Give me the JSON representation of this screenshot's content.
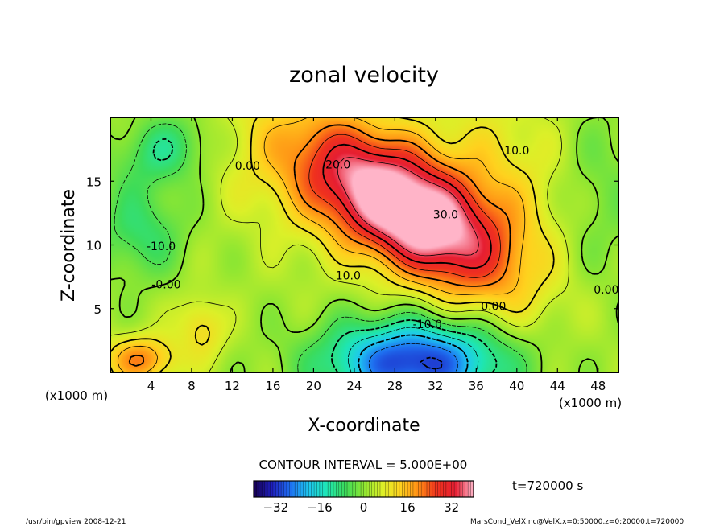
{
  "chart_data": {
    "type": "heatmap",
    "title": "zonal velocity",
    "xlabel": "X-coordinate",
    "ylabel": "Z-coordinate",
    "x_unit_label": "(x1000 m)",
    "z_unit_label": "(x1000 m)",
    "xlim": [
      0,
      50
    ],
    "ylim": [
      0,
      20
    ],
    "x_ticks": [
      4,
      8,
      12,
      16,
      20,
      24,
      28,
      32,
      36,
      40,
      44,
      48
    ],
    "y_ticks": [
      5,
      10,
      15
    ],
    "contour_labels": [
      {
        "text": "0.00",
        "x": 13.5,
        "y": 16.2
      },
      {
        "text": "20.0",
        "x": 22.4,
        "y": 16.3
      },
      {
        "text": "10.0",
        "x": 40.0,
        "y": 17.4
      },
      {
        "text": "30.0",
        "x": 33.0,
        "y": 12.4
      },
      {
        "text": "-10.0",
        "x": 5.0,
        "y": 9.9
      },
      {
        "text": "10.0",
        "x": 23.4,
        "y": 7.6
      },
      {
        "text": "-0.00",
        "x": 5.5,
        "y": 6.9
      },
      {
        "text": "0.00",
        "x": 48.8,
        "y": 6.5
      },
      {
        "text": "0.00",
        "x": 37.7,
        "y": 5.2
      },
      {
        "text": "-10.0",
        "x": 31.2,
        "y": 3.8
      }
    ],
    "colorbar": {
      "ticks": [
        -32,
        -16,
        0,
        16,
        32
      ],
      "range": [
        -40,
        40
      ],
      "colors": [
        "#16004d",
        "#1f1fbf",
        "#1e6ff0",
        "#1ec8f0",
        "#1ee6b4",
        "#3cdc5a",
        "#8ce632",
        "#dcf028",
        "#ffd21e",
        "#ff8c14",
        "#f0321e",
        "#e61e32",
        "#ffb4c8"
      ]
    },
    "contour_interval_text": "CONTOUR INTERVAL = 5.000E+00",
    "time_text": "t=720000 s",
    "features": [
      {
        "kind": "max",
        "x": 29,
        "z": 12.5,
        "value": 35
      },
      {
        "kind": "min",
        "x": 30,
        "z": 1,
        "value": -30
      },
      {
        "kind": "min",
        "x": 6,
        "z": 17.5,
        "value": -12
      },
      {
        "kind": "max",
        "x": 3,
        "z": 1,
        "value": 20
      }
    ]
  },
  "footer": {
    "program": "/usr/bin/gpview   2008-12-21",
    "source": "MarsCond_VelX.nc@VelX,x=0:50000,z=0:20000,t=720000"
  }
}
